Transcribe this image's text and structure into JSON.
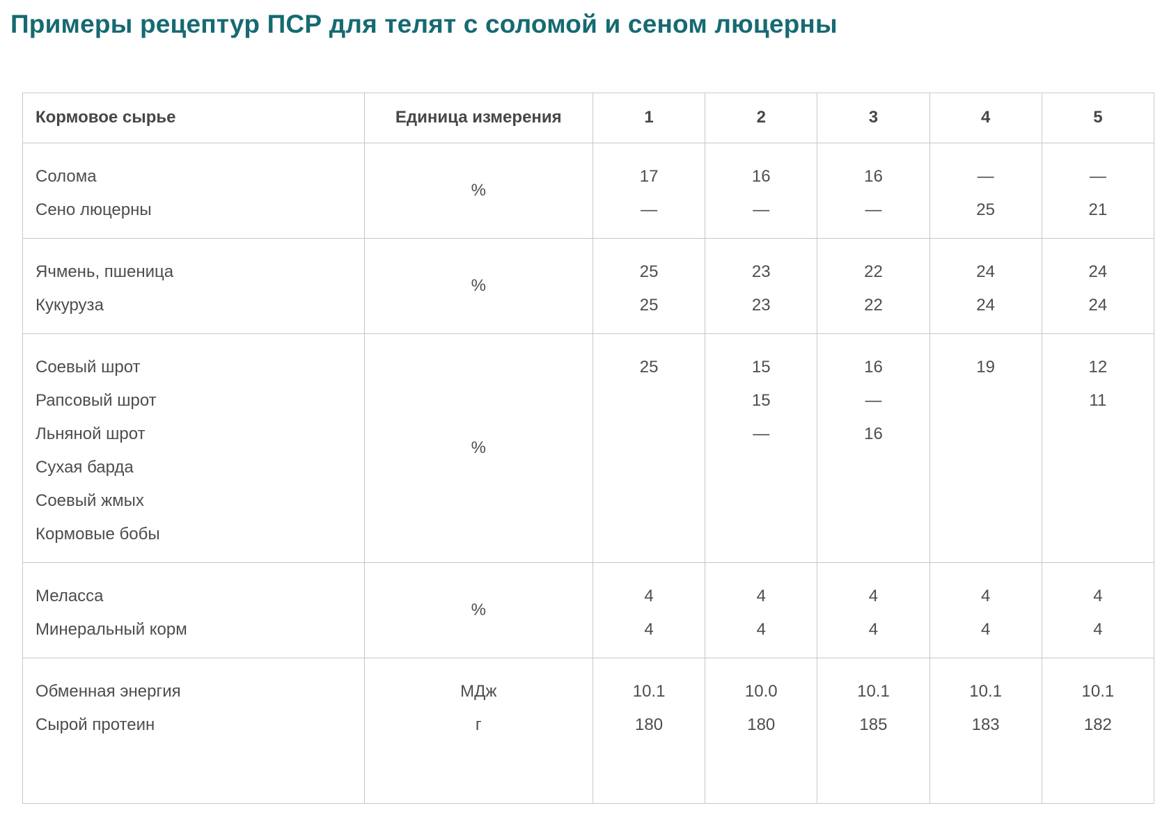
{
  "page": {
    "title": "Примеры рецептур ПСР для телят с соломой и сеном люцерны"
  },
  "colors": {
    "title_accent": "#166a72",
    "body_text": "#4d4d4d",
    "table_border": "#c7c7c7",
    "background": "#ffffff"
  },
  "table": {
    "headers": [
      "Кормовое сырье",
      "Единица измерения",
      "1",
      "2",
      "3",
      "4",
      "5"
    ],
    "missing_value_symbol": "—",
    "groups": [
      {
        "unit": "%",
        "unit_layout": "center",
        "rows": [
          {
            "name": "Солома",
            "values": [
              "17",
              "16",
              "16",
              "—",
              "—"
            ]
          },
          {
            "name": "Сено люцерны",
            "values": [
              "—",
              "—",
              "—",
              "25",
              "21"
            ]
          }
        ]
      },
      {
        "unit": "%",
        "unit_layout": "center",
        "rows": [
          {
            "name": "Ячмень, пшеница",
            "values": [
              "25",
              "23",
              "22",
              "24",
              "24"
            ]
          },
          {
            "name": "Кукуруза",
            "values": [
              "25",
              "23",
              "22",
              "24",
              "24"
            ]
          }
        ]
      },
      {
        "unit": "%",
        "unit_layout": "center",
        "rows": [
          {
            "name": "Соевый шрот",
            "values": [
              "25",
              "15",
              "16",
              "19",
              "12"
            ]
          },
          {
            "name": "Рапсовый шрот",
            "values": [
              "",
              "15",
              "—",
              "",
              "11"
            ]
          },
          {
            "name": "Льняной шрот",
            "values": [
              "",
              "—",
              "16",
              "",
              ""
            ]
          },
          {
            "name": "Сухая барда",
            "values": [
              "",
              "",
              "",
              "",
              ""
            ]
          },
          {
            "name": "Соевый жмых",
            "values": [
              "",
              "",
              "",
              "",
              ""
            ]
          },
          {
            "name": "Кормовые бобы",
            "values": [
              "",
              "",
              "",
              "",
              ""
            ]
          }
        ]
      },
      {
        "unit": "%",
        "unit_layout": "center",
        "rows": [
          {
            "name": "Меласса",
            "values": [
              "4",
              "4",
              "4",
              "4",
              "4"
            ]
          },
          {
            "name": "Минеральный корм",
            "values": [
              "4",
              "4",
              "4",
              "4",
              "4"
            ]
          }
        ]
      },
      {
        "unit_layout": "per-row",
        "rows": [
          {
            "name": "Обменная энергия",
            "unit": "МДж",
            "values": [
              "10.1",
              "10.0",
              "10.1",
              "10.1",
              "10.1"
            ]
          },
          {
            "name": "Сырой протеин",
            "unit": "г",
            "values": [
              "180",
              "180",
              "185",
              "183",
              "182"
            ]
          }
        ]
      }
    ]
  }
}
